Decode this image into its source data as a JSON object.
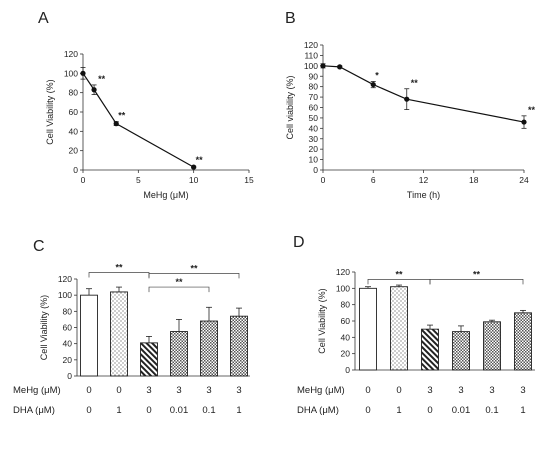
{
  "chart_data": [
    {
      "panel": "A",
      "type": "line",
      "xlabel": "MeHg (μM)",
      "ylabel": "Cell Viability (%)",
      "xlim": [
        0,
        15
      ],
      "ylim": [
        0,
        120
      ],
      "xticks": [
        0,
        5,
        10,
        15
      ],
      "yticks": [
        0,
        20,
        40,
        60,
        80,
        100,
        120
      ],
      "points": [
        {
          "x": 0,
          "y": 100,
          "err": 6,
          "sig": ""
        },
        {
          "x": 1,
          "y": 83,
          "err": 5,
          "sig": "**"
        },
        {
          "x": 3,
          "y": 48,
          "err": 2,
          "sig": "**"
        },
        {
          "x": 10,
          "y": 3,
          "err": 1,
          "sig": "**"
        }
      ]
    },
    {
      "panel": "B",
      "type": "line",
      "xlabel": "Time (h)",
      "ylabel": "Cell viability (%)",
      "xlim": [
        0,
        24
      ],
      "ylim": [
        0,
        120
      ],
      "xticks": [
        0,
        6,
        12,
        18,
        24
      ],
      "yticks": [
        0,
        10,
        20,
        30,
        40,
        50,
        60,
        70,
        80,
        90,
        100,
        110,
        120
      ],
      "points": [
        {
          "x": 0,
          "y": 100,
          "err": 2,
          "sig": ""
        },
        {
          "x": 2,
          "y": 99,
          "err": 1,
          "sig": ""
        },
        {
          "x": 6,
          "y": 82,
          "err": 3,
          "sig": "*"
        },
        {
          "x": 10,
          "y": 68,
          "err": 10,
          "sig": "**"
        },
        {
          "x": 24,
          "y": 46,
          "err": 6,
          "sig": "**"
        }
      ]
    },
    {
      "panel": "C",
      "type": "bar",
      "ylabel": "Cell Viability (%)",
      "ylim": [
        0,
        120
      ],
      "yticks": [
        0,
        20,
        40,
        60,
        80,
        100,
        120
      ],
      "values": [
        100,
        104,
        41,
        55,
        68,
        74
      ],
      "errors": [
        8,
        6,
        8,
        15,
        17,
        10
      ],
      "patterns": [
        "blank",
        "dots",
        "diagonal",
        "cross",
        "cross",
        "cross"
      ],
      "rows": [
        {
          "label": "MeHg (μM)",
          "values": [
            "0",
            "0",
            "3",
            "3",
            "3",
            "3"
          ]
        },
        {
          "label": "DHA   (μM)",
          "values": [
            "0",
            "1",
            "0",
            "0.01",
            "0.1",
            "1"
          ]
        }
      ],
      "brackets": [
        {
          "from": 0,
          "to": 2,
          "level": 128,
          "label": "**"
        },
        {
          "from": 2,
          "to": 5,
          "level": 127,
          "label": "**"
        },
        {
          "from": 2,
          "to": 4,
          "level": 110,
          "label": "**"
        }
      ]
    },
    {
      "panel": "D",
      "type": "bar",
      "ylabel": "Cell Viability (%)",
      "ylim": [
        0,
        120
      ],
      "yticks": [
        0,
        20,
        40,
        60,
        80,
        100,
        120
      ],
      "values": [
        100,
        102,
        50,
        47,
        59,
        70
      ],
      "errors": [
        2,
        2,
        5,
        7,
        2,
        3
      ],
      "patterns": [
        "blank",
        "dots",
        "diagonal",
        "cross",
        "cross",
        "cross"
      ],
      "rows": [
        {
          "label": "MeHg (μM)",
          "values": [
            "0",
            "0",
            "3",
            "3",
            "3",
            "3"
          ]
        },
        {
          "label": "DHA   (μM)",
          "values": [
            "0",
            "1",
            "0",
            "0.01",
            "0.1",
            "1"
          ]
        }
      ],
      "brackets": [
        {
          "from": 0,
          "to": 2,
          "level": 111,
          "label": "**"
        },
        {
          "from": 2,
          "to": 5,
          "level": 111,
          "label": "**"
        }
      ]
    }
  ]
}
